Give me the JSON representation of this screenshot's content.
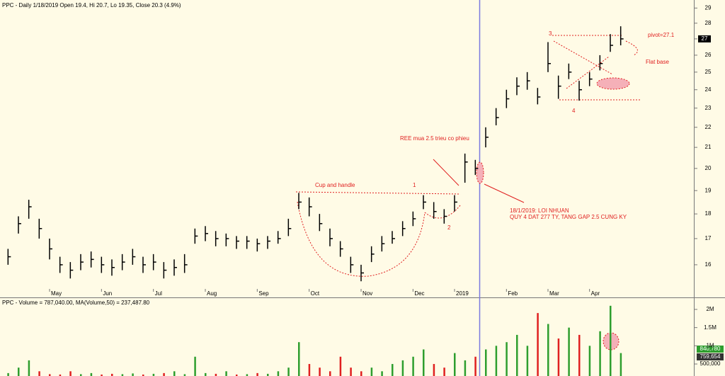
{
  "chart_data": [
    {
      "type": "ohlc",
      "title": "PPC - Daily 1/18/2019 Open 19.4, Hi 20.7, Lo 19.35, Close 20.3 (4.9%)",
      "categories": [
        null,
        null,
        null,
        null,
        "May",
        null,
        null,
        null,
        null,
        "Jun",
        null,
        null,
        null,
        null,
        "Jul",
        null,
        null,
        null,
        null,
        "Aug",
        null,
        null,
        null,
        null,
        "Sep",
        null,
        null,
        null,
        null,
        "Oct",
        null,
        null,
        null,
        null,
        "Nov",
        null,
        null,
        null,
        null,
        "Dec",
        null,
        null,
        null,
        "2019",
        null,
        null,
        null,
        null,
        "Feb",
        null,
        null,
        null,
        "Mar",
        null,
        null,
        null,
        "Apr",
        null,
        null,
        null
      ],
      "series": [
        {
          "name": "High",
          "values": [
            16.6,
            17.9,
            18.6,
            17.8,
            17.0,
            16.3,
            16.1,
            16.4,
            16.5,
            16.3,
            16.2,
            16.4,
            16.6,
            16.3,
            16.4,
            16.1,
            16.2,
            16.4,
            17.4,
            17.5,
            17.3,
            17.2,
            17.1,
            17.1,
            17.0,
            17.1,
            17.3,
            17.8,
            18.9,
            18.7,
            18.0,
            17.4,
            16.9,
            16.3,
            16.0,
            16.7,
            17.1,
            17.3,
            17.7,
            18.1,
            18.8,
            18.5,
            18.2,
            18.8,
            20.7,
            20.4,
            22.0,
            23.0,
            24.0,
            24.7,
            25.0,
            24.1,
            26.8,
            24.8,
            25.5,
            24.5,
            25.0,
            26.0,
            27.3,
            27.8
          ]
        },
        {
          "name": "Low",
          "values": [
            16.0,
            17.2,
            17.8,
            17.0,
            16.2,
            15.7,
            15.5,
            15.8,
            15.9,
            15.7,
            15.6,
            15.8,
            16.0,
            15.7,
            15.8,
            15.5,
            15.6,
            15.7,
            16.8,
            16.9,
            16.7,
            16.7,
            16.6,
            16.6,
            16.5,
            16.6,
            16.8,
            17.1,
            18.2,
            17.9,
            17.3,
            16.7,
            16.3,
            15.7,
            15.4,
            16.1,
            16.5,
            16.8,
            17.1,
            17.5,
            18.2,
            17.8,
            17.6,
            18.1,
            19.35,
            19.7,
            21.0,
            22.1,
            23.0,
            23.7,
            24.0,
            23.2,
            25.0,
            23.5,
            24.6,
            23.4,
            24.2,
            25.1,
            26.2,
            26.6
          ]
        },
        {
          "name": "Close",
          "values": [
            16.3,
            17.6,
            18.3,
            17.4,
            16.6,
            16.0,
            15.8,
            16.1,
            16.2,
            16.0,
            15.9,
            16.1,
            16.3,
            16.0,
            16.1,
            15.8,
            15.9,
            16.0,
            17.1,
            17.2,
            17.0,
            17.0,
            16.9,
            16.9,
            16.8,
            16.9,
            17.0,
            17.4,
            18.5,
            18.3,
            17.6,
            17.0,
            16.6,
            16.0,
            15.7,
            16.4,
            16.8,
            17.0,
            17.4,
            17.8,
            18.5,
            18.1,
            17.9,
            18.5,
            20.3,
            20.0,
            21.5,
            22.5,
            23.5,
            24.2,
            24.5,
            23.6,
            25.5,
            24.2,
            25.0,
            24.0,
            24.6,
            25.5,
            26.6,
            27
          ]
        }
      ],
      "color": "#000000",
      "log": true,
      "ylim": [
        15.13,
        29.4
      ],
      "yticks": [
        16,
        17,
        18,
        19,
        20,
        21,
        22,
        23,
        24,
        25,
        26,
        27,
        28,
        29
      ],
      "annotations": [
        "Cup and handle",
        "1",
        "2",
        "3",
        "4",
        "REE mua 2.5 trieu co phieu",
        "18/1/2019: LOI NHUAN",
        "QUY 4 DAT 277 TY, TANG GAP 2.5 CUNG KY",
        "pivot=27.1",
        "Flat base"
      ]
    },
    {
      "type": "bar",
      "title": "PPC - Volume = 787,040.00, MA(Volume,50) = 237,487.80",
      "values": [
        250000,
        400000,
        600000,
        300000,
        220000,
        210000,
        300000,
        220000,
        250000,
        210000,
        230000,
        220000,
        240000,
        210000,
        230000,
        250000,
        300000,
        220000,
        700000,
        250000,
        230000,
        300000,
        210000,
        220000,
        250000,
        230000,
        300000,
        400000,
        1100000,
        500000,
        400000,
        300000,
        700000,
        400000,
        300000,
        400000,
        300000,
        500000,
        600000,
        700000,
        900000,
        500000,
        400000,
        800000,
        600000,
        700000,
        900000,
        1000000,
        1100000,
        1300000,
        1000000,
        1900000,
        1600000,
        1200000,
        1500000,
        1300000,
        1000000,
        1400000,
        2100000,
        800000
      ],
      "up_color": "#2e9e2e",
      "down_color": "#e02020",
      "ylim": [
        170000,
        2330000
      ],
      "yticks": [
        {
          "value": 500000,
          "label": "500,000"
        },
        {
          "value": 1000000,
          "label": "1M"
        },
        {
          "value": 1500000,
          "label": "1.5M"
        },
        {
          "value": 2000000,
          "label": "2M"
        }
      ],
      "annotations": [
        "840,780",
        "759,654"
      ]
    }
  ]
}
